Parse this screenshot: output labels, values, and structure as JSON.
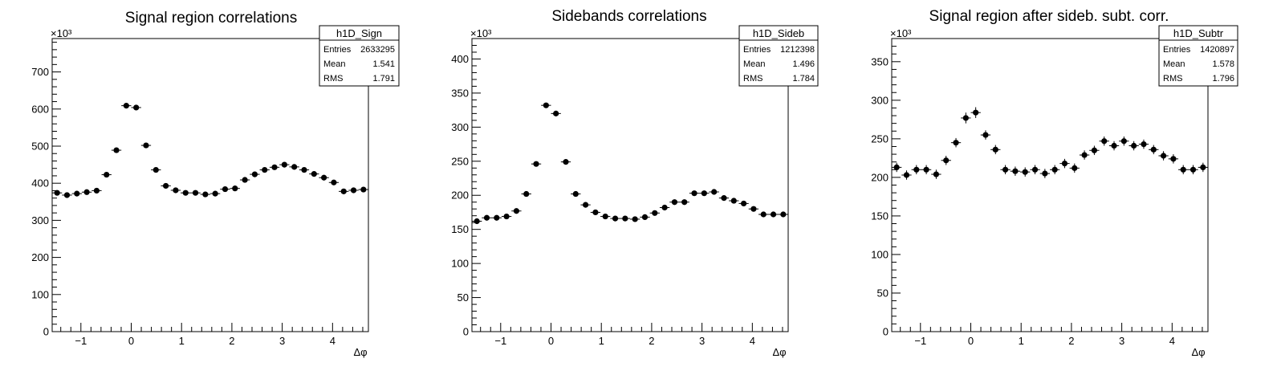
{
  "chart_data": [
    {
      "type": "scatter",
      "title": "Signal region correlations",
      "xlabel": "Δφ",
      "ylabel": "",
      "y_exponent_label": "×10³",
      "xlim": [
        -1.5708,
        4.7124
      ],
      "ylim": [
        0,
        790
      ],
      "x_ticks": [
        -1,
        0,
        1,
        2,
        3,
        4
      ],
      "y_ticks": [
        0,
        100,
        200,
        300,
        400,
        500,
        600,
        700
      ],
      "grid": false,
      "error_bars": true,
      "stats": {
        "name": "h1D_Sign",
        "entries": "2633295",
        "mean": "1.541",
        "rms": "1.791"
      },
      "y": [
        374,
        368,
        372,
        376,
        380,
        423,
        489,
        609,
        604,
        502,
        436,
        393,
        381,
        374,
        374,
        370,
        372,
        384,
        386,
        409,
        424,
        436,
        443,
        450,
        444,
        436,
        425,
        415,
        402,
        378,
        381,
        383
      ],
      "yerr": [
        3,
        3,
        3,
        3,
        3,
        3,
        3,
        4,
        4,
        3,
        3,
        3,
        3,
        3,
        3,
        3,
        3,
        3,
        3,
        3,
        3,
        3,
        3,
        3,
        3,
        3,
        3,
        3,
        3,
        3,
        3,
        3
      ]
    },
    {
      "type": "scatter",
      "title": "Sidebands correlations",
      "xlabel": "Δφ",
      "ylabel": "",
      "y_exponent_label": "×10³",
      "xlim": [
        -1.5708,
        4.7124
      ],
      "ylim": [
        0,
        430
      ],
      "x_ticks": [
        -1,
        0,
        1,
        2,
        3,
        4
      ],
      "y_ticks": [
        0,
        50,
        100,
        150,
        200,
        250,
        300,
        350,
        400
      ],
      "grid": false,
      "error_bars": true,
      "stats": {
        "name": "h1D_Sideb",
        "entries": "1212398",
        "mean": "1.496",
        "rms": "1.784"
      },
      "y": [
        162,
        167,
        167,
        169,
        177,
        202,
        246,
        332,
        320,
        249,
        202,
        186,
        175,
        169,
        166,
        166,
        165,
        168,
        174,
        182,
        190,
        190,
        203,
        203,
        205,
        196,
        192,
        188,
        180,
        172,
        172,
        172
      ],
      "yerr": [
        2,
        2,
        2,
        2,
        2,
        2,
        2,
        3,
        3,
        2,
        2,
        2,
        2,
        2,
        2,
        2,
        2,
        2,
        2,
        2,
        2,
        2,
        2,
        2,
        2,
        2,
        2,
        2,
        2,
        2,
        2,
        2
      ]
    },
    {
      "type": "scatter",
      "title": "Signal region after sideb. subt. corr.",
      "xlabel": "Δφ",
      "ylabel": "",
      "y_exponent_label": "×10³",
      "xlim": [
        -1.5708,
        4.7124
      ],
      "ylim": [
        0,
        380
      ],
      "x_ticks": [
        -1,
        0,
        1,
        2,
        3,
        4
      ],
      "y_ticks": [
        0,
        50,
        100,
        150,
        200,
        250,
        300,
        350
      ],
      "grid": false,
      "error_bars": true,
      "stats": {
        "name": "h1D_Subtr",
        "entries": "1420897",
        "mean": "1.578",
        "rms": "1.796"
      },
      "y": [
        213,
        203,
        210,
        210,
        204,
        222,
        245,
        277,
        284,
        255,
        236,
        210,
        208,
        207,
        210,
        205,
        210,
        218,
        212,
        229,
        235,
        247,
        241,
        247,
        241,
        243,
        236,
        228,
        224,
        210,
        210,
        213
      ],
      "yerr": [
        6,
        6,
        6,
        6,
        6,
        6,
        6,
        7,
        7,
        6,
        6,
        6,
        6,
        6,
        6,
        6,
        6,
        6,
        6,
        6,
        6,
        6,
        6,
        6,
        6,
        6,
        6,
        6,
        6,
        6,
        6,
        6
      ]
    }
  ],
  "stats_labels": {
    "entries": "Entries",
    "mean": "Mean",
    "rms": "RMS"
  }
}
